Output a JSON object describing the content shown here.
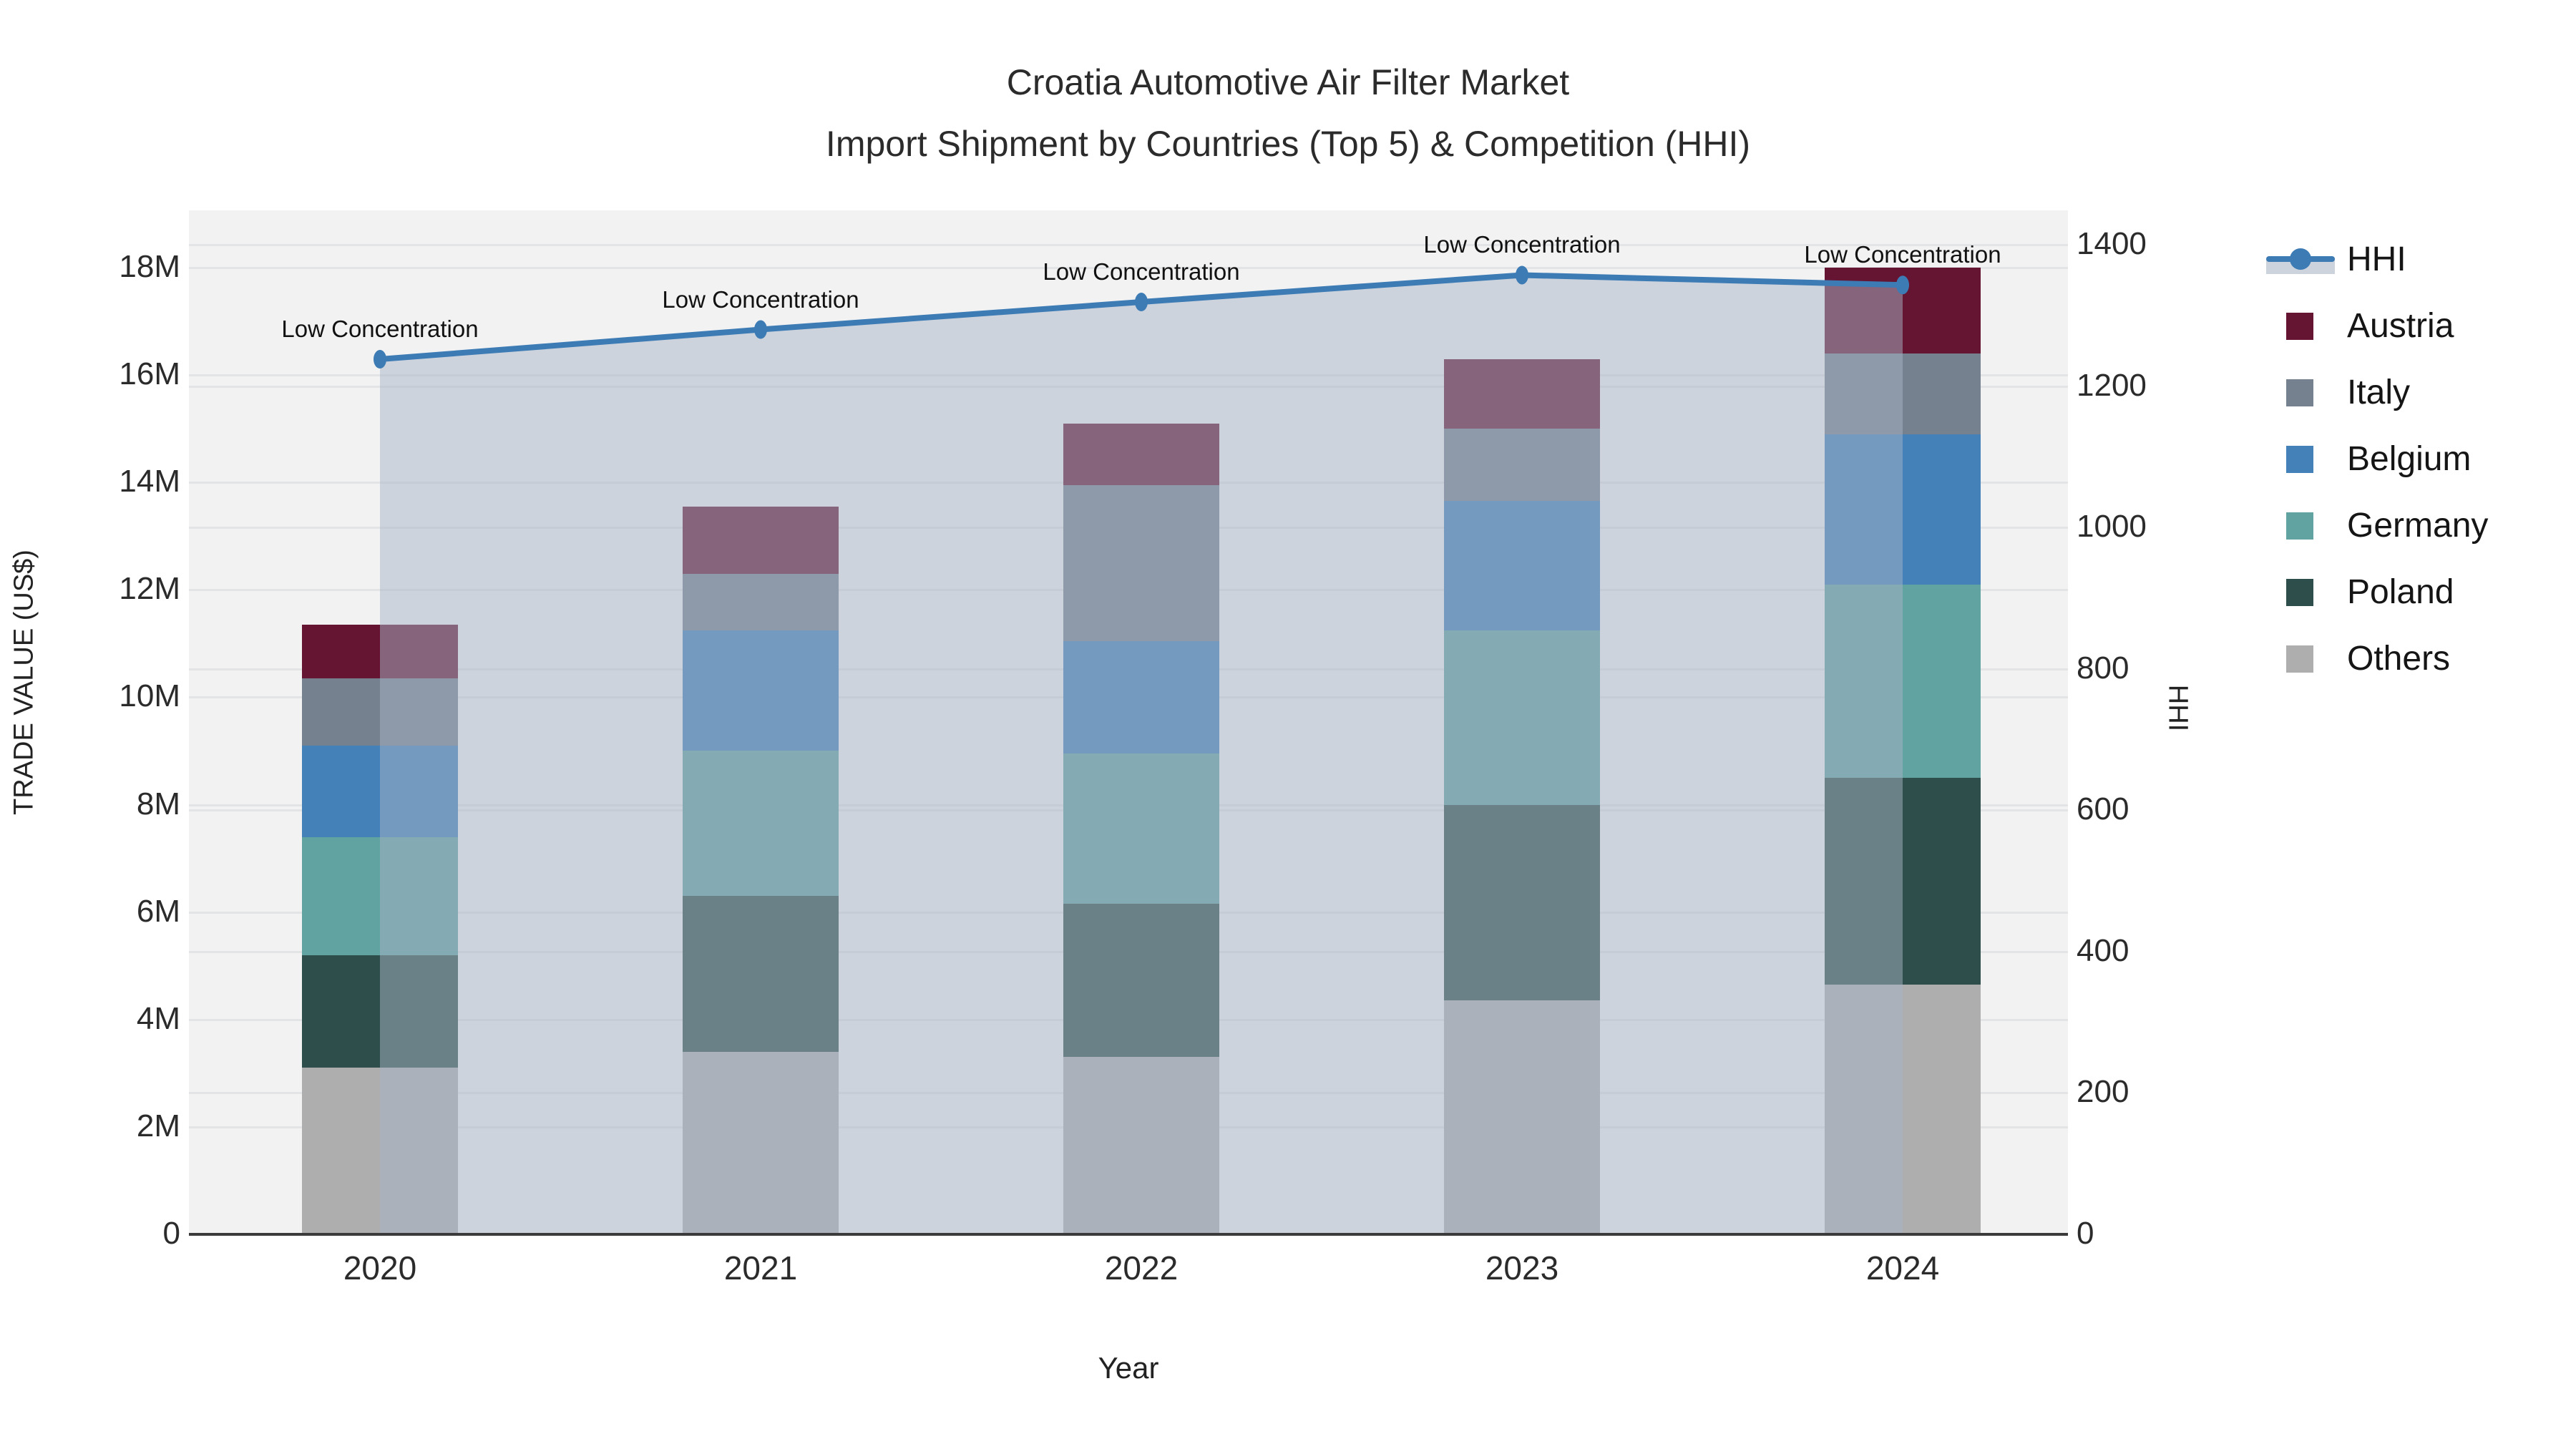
{
  "title": {
    "line1": "Croatia Automotive Air Filter Market",
    "line2": "Import Shipment by Countries (Top 5) & Competition (HHI)"
  },
  "axes": {
    "x": {
      "title": "Year",
      "tick_labels": [
        "2020",
        "2021",
        "2022",
        "2023",
        "2024"
      ]
    },
    "y_left": {
      "title": "TRADE VALUE (US$)",
      "tick_labels": [
        "0",
        "2M",
        "4M",
        "6M",
        "8M",
        "10M",
        "12M",
        "14M",
        "16M",
        "18M"
      ],
      "tick_values": [
        0,
        2,
        4,
        6,
        8,
        10,
        12,
        14,
        16,
        18
      ]
    },
    "y_right": {
      "title": "HHI",
      "tick_labels": [
        "0",
        "200",
        "400",
        "600",
        "800",
        "1000",
        "1200",
        "1400"
      ],
      "tick_values": [
        0,
        200,
        400,
        600,
        800,
        1000,
        1200,
        1400
      ]
    }
  },
  "legend": {
    "items": [
      {
        "label": "HHI",
        "type": "line",
        "color": "#3d7bb5"
      },
      {
        "label": "Austria",
        "type": "swatch",
        "color": "#651431"
      },
      {
        "label": "Italy",
        "type": "swatch",
        "color": "#75818f"
      },
      {
        "label": "Belgium",
        "type": "swatch",
        "color": "#4381b8"
      },
      {
        "label": "Germany",
        "type": "swatch",
        "color": "#60a3a1"
      },
      {
        "label": "Poland",
        "type": "swatch",
        "color": "#2e4e4b"
      },
      {
        "label": "Others",
        "type": "swatch",
        "color": "#aeaeae"
      }
    ]
  },
  "chart_data": {
    "type": "bar",
    "subtype": "stacked-bar-with-line",
    "title": "Croatia Automotive Air Filter Market — Import Shipment by Countries (Top 5) & Competition (HHI)",
    "categories": [
      "2020",
      "2021",
      "2022",
      "2023",
      "2024"
    ],
    "bar_value_unit": "million US$",
    "series": [
      {
        "name": "Others",
        "color": "#aeaeae",
        "values": [
          3.1,
          3.4,
          3.3,
          4.35,
          4.65
        ]
      },
      {
        "name": "Poland",
        "color": "#2e4e4b",
        "values": [
          2.1,
          2.9,
          2.85,
          3.65,
          3.85
        ]
      },
      {
        "name": "Germany",
        "color": "#60a3a1",
        "values": [
          2.2,
          2.7,
          2.8,
          3.25,
          3.6
        ]
      },
      {
        "name": "Belgium",
        "color": "#4381b8",
        "values": [
          1.7,
          2.25,
          2.1,
          2.4,
          2.8
        ]
      },
      {
        "name": "Italy",
        "color": "#75818f",
        "values": [
          1.25,
          1.05,
          2.9,
          1.35,
          1.5
        ]
      },
      {
        "name": "Austria",
        "color": "#651431",
        "values": [
          1.0,
          1.25,
          1.15,
          1.3,
          1.6
        ]
      }
    ],
    "bar_totals_millions": [
      11.35,
      13.55,
      15.1,
      16.3,
      18.0
    ],
    "line_series": {
      "name": "HHI",
      "color": "#3d7bb5",
      "fill_color": "rgba(167,179,197,0.5)",
      "values": [
        1238,
        1280,
        1319,
        1357,
        1343
      ],
      "annotations": [
        "Low Concentration",
        "Low Concentration",
        "Low Concentration",
        "Low Concentration",
        "Low Concentration"
      ]
    },
    "xlabel": "Year",
    "ylabel_left": "TRADE VALUE (US$)",
    "ylabel_right": "HHI",
    "ylim_left_millions": [
      0,
      19.06
    ],
    "ylim_right": [
      0,
      1448
    ],
    "grid": true,
    "legend_position": "right"
  }
}
